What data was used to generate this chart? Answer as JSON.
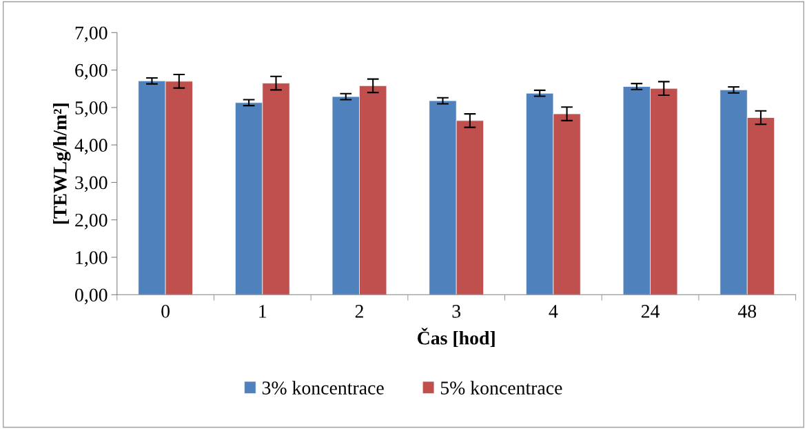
{
  "chart_data": {
    "type": "bar",
    "xlabel": "Čas [hod]",
    "ylabel": "[TEWLg/h/m²]",
    "categories": [
      "0",
      "1",
      "2",
      "3",
      "4",
      "24",
      "48"
    ],
    "series": [
      {
        "name": "3% koncentrace",
        "color": "#4f81bd",
        "values": [
          5.71,
          5.13,
          5.29,
          5.18,
          5.38,
          5.56,
          5.47
        ],
        "errors": [
          0.08,
          0.08,
          0.08,
          0.08,
          0.08,
          0.08,
          0.08
        ]
      },
      {
        "name": "5% koncentrace",
        "color": "#c0504d",
        "values": [
          5.7,
          5.65,
          5.58,
          4.65,
          4.83,
          5.51,
          4.73
        ],
        "errors": [
          0.18,
          0.18,
          0.18,
          0.18,
          0.18,
          0.18,
          0.18
        ]
      }
    ],
    "ylim": [
      0,
      7
    ],
    "yticks": [
      {
        "value": 0,
        "label": "0,00"
      },
      {
        "value": 1,
        "label": "1,00"
      },
      {
        "value": 2,
        "label": "2,00"
      },
      {
        "value": 3,
        "label": "3,00"
      },
      {
        "value": 4,
        "label": "4,00"
      },
      {
        "value": 5,
        "label": "5,00"
      },
      {
        "value": 6,
        "label": "6,00"
      },
      {
        "value": 7,
        "label": "7,00"
      }
    ],
    "legend": "bottom"
  }
}
